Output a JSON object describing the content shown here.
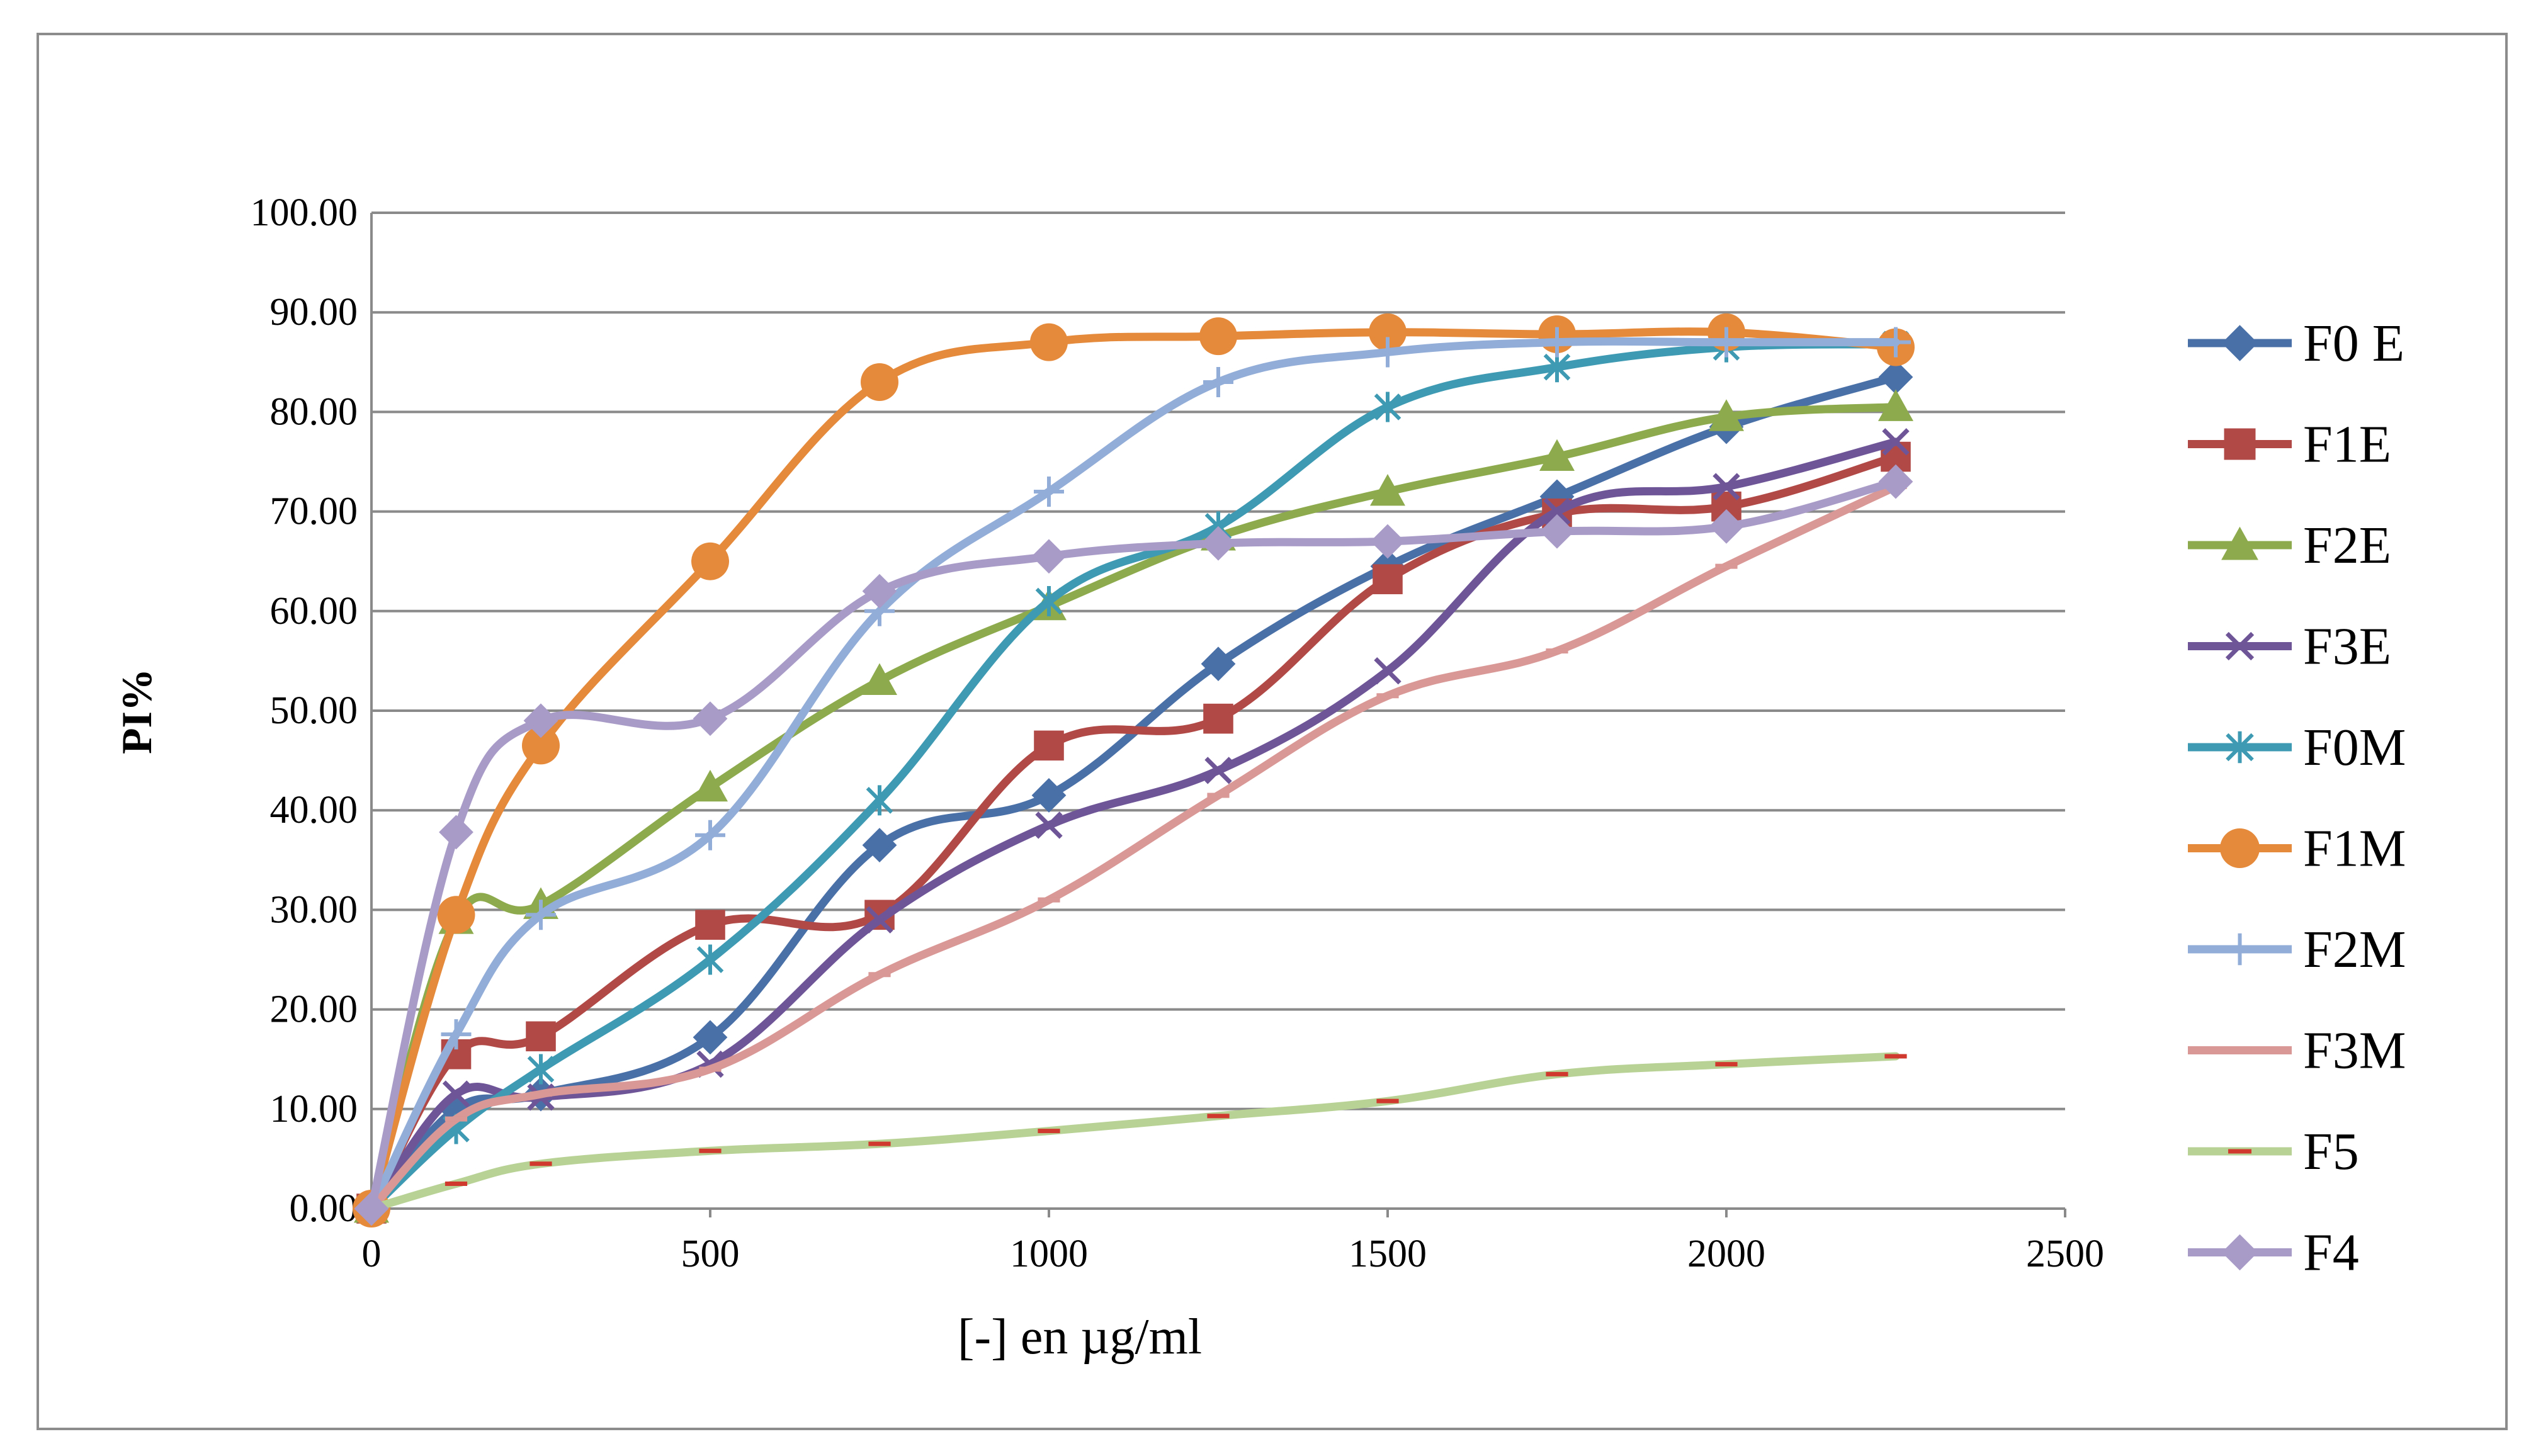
{
  "chart_data": {
    "type": "line",
    "title": "",
    "xlabel": "[-] en µg/ml",
    "ylabel": "PI%",
    "xlim": [
      0,
      2500
    ],
    "ylim": [
      0,
      100
    ],
    "x_ticks": [
      "0",
      "500",
      "1000",
      "1500",
      "2000",
      "2500"
    ],
    "y_ticks": [
      "0.00",
      "10.00",
      "20.00",
      "30.00",
      "40.00",
      "50.00",
      "60.00",
      "70.00",
      "80.00",
      "90.00",
      "100.00"
    ],
    "grid": true,
    "legend_position": "right",
    "x": [
      0,
      125,
      250,
      500,
      750,
      1000,
      1250,
      1500,
      1750,
      2000,
      2250
    ],
    "series": [
      {
        "name": "F0 E",
        "color": "#4a70a8",
        "marker": "diamond",
        "values": [
          0,
          10,
          11.5,
          17.2,
          36.5,
          41.5,
          54.7,
          64.5,
          71.5,
          78.5,
          83.5
        ]
      },
      {
        "name": "F1E",
        "color": "#b14a47",
        "marker": "square",
        "values": [
          0,
          15.5,
          17.3,
          28.5,
          29.5,
          46.5,
          49.2,
          63.2,
          69.8,
          70.5,
          75.5
        ]
      },
      {
        "name": "F2E",
        "color": "#8dab4c",
        "marker": "triangle",
        "values": [
          0,
          29,
          30.5,
          42.3,
          53.0,
          60.5,
          67.5,
          72.0,
          75.5,
          79.5,
          80.5
        ]
      },
      {
        "name": "F3E",
        "color": "#6e5598",
        "marker": "x",
        "values": [
          0,
          11.5,
          11.2,
          14.5,
          29.0,
          38.5,
          44.0,
          54.0,
          70.0,
          72.5,
          77.0
        ]
      },
      {
        "name": "F0M",
        "color": "#3e9ab2",
        "marker": "asterisk",
        "values": [
          0,
          8.0,
          14.0,
          25.0,
          41.0,
          61.0,
          68.5,
          80.5,
          84.5,
          86.5,
          86.8
        ]
      },
      {
        "name": "F1M",
        "color": "#e58a3b",
        "marker": "circle",
        "values": [
          0,
          29.5,
          46.5,
          65.0,
          83.0,
          87.0,
          87.6,
          88.0,
          87.8,
          88.0,
          86.5
        ]
      },
      {
        "name": "F2M",
        "color": "#92add8",
        "marker": "plus",
        "values": [
          0,
          17.5,
          29.5,
          37.5,
          60.0,
          72.0,
          83.0,
          86.0,
          87.0,
          87.0,
          87.0
        ]
      },
      {
        "name": "F3M",
        "color": "#d99795",
        "marker": "dash",
        "values": [
          0,
          9.0,
          11.5,
          14.0,
          23.5,
          31.0,
          41.5,
          51.5,
          56.0,
          64.5,
          72.5
        ]
      },
      {
        "name": "F5",
        "color": "#b8d295",
        "marker": "dash-red",
        "values": [
          0,
          2.5,
          4.5,
          5.8,
          6.5,
          7.8,
          9.3,
          10.8,
          13.5,
          14.5,
          15.3
        ]
      },
      {
        "name": "F4",
        "color": "#a99bc8",
        "marker": "diamond",
        "values": [
          0,
          37.8,
          49.0,
          49.2,
          62.0,
          65.5,
          66.8,
          67.0,
          68.0,
          68.5,
          73.0
        ]
      }
    ]
  }
}
